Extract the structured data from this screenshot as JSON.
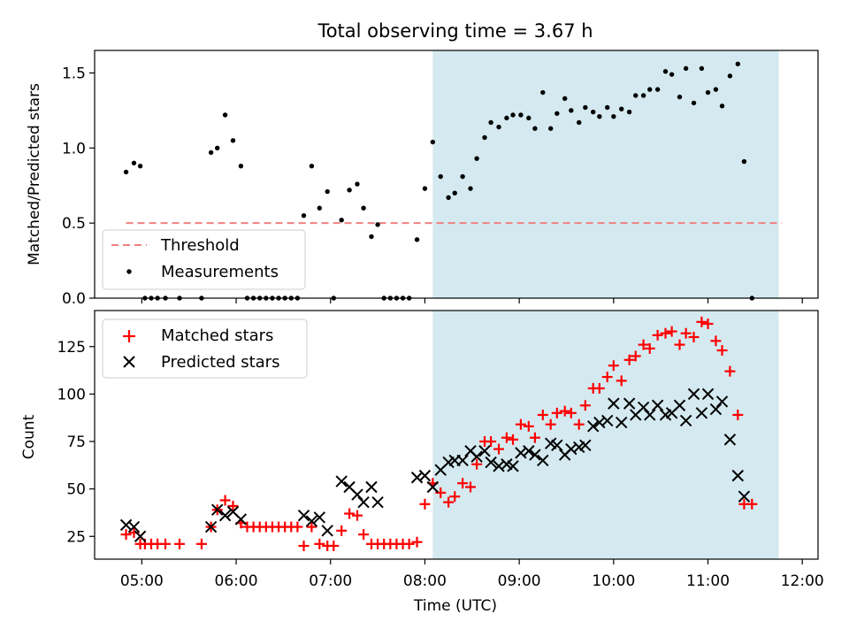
{
  "chart_data": [
    {
      "type": "scatter",
      "title": "Total observing time = 3.67 h",
      "ylabel": "Matched/Predicted stars",
      "xlabel": "",
      "xlim": [
        "04:30",
        "12:10"
      ],
      "ylim": [
        0,
        1.65
      ],
      "yticks": [
        0.0,
        0.5,
        1.0,
        1.5
      ],
      "ytick_labels": [
        "0.0",
        "0.5",
        "1.0",
        "1.5"
      ],
      "grid": false,
      "legend_position": "lower-left",
      "observing_window": {
        "start": "08:05",
        "end": "11:45",
        "color": "#d4eaf0"
      },
      "threshold": {
        "name": "Threshold",
        "value": 0.5,
        "from": "04:50",
        "to": "11:47",
        "color": "#f08080"
      },
      "series": [
        {
          "name": "Measurements",
          "color": "#000000",
          "marker": "dot",
          "points": [
            [
              "04:50",
              0.84
            ],
            [
              "04:55",
              0.9
            ],
            [
              "04:59",
              0.88
            ],
            [
              "05:02",
              0.0
            ],
            [
              "05:06",
              0.0
            ],
            [
              "05:10",
              0.0
            ],
            [
              "05:15",
              0.0
            ],
            [
              "05:24",
              0.0
            ],
            [
              "05:38",
              0.0
            ],
            [
              "05:44",
              0.97
            ],
            [
              "05:48",
              1.0
            ],
            [
              "05:53",
              1.22
            ],
            [
              "05:58",
              1.05
            ],
            [
              "06:03",
              0.88
            ],
            [
              "06:07",
              0.0
            ],
            [
              "06:11",
              0.0
            ],
            [
              "06:15",
              0.0
            ],
            [
              "06:19",
              0.0
            ],
            [
              "06:23",
              0.0
            ],
            [
              "06:27",
              0.0
            ],
            [
              "06:31",
              0.0
            ],
            [
              "06:35",
              0.0
            ],
            [
              "06:39",
              0.0
            ],
            [
              "06:43",
              0.55
            ],
            [
              "06:48",
              0.88
            ],
            [
              "06:53",
              0.6
            ],
            [
              "06:58",
              0.71
            ],
            [
              "07:02",
              0.0
            ],
            [
              "07:07",
              0.52
            ],
            [
              "07:12",
              0.72
            ],
            [
              "07:17",
              0.76
            ],
            [
              "07:21",
              0.6
            ],
            [
              "07:26",
              0.41
            ],
            [
              "07:30",
              0.49
            ],
            [
              "07:34",
              0.0
            ],
            [
              "07:38",
              0.0
            ],
            [
              "07:42",
              0.0
            ],
            [
              "07:46",
              0.0
            ],
            [
              "07:50",
              0.0
            ],
            [
              "07:55",
              0.39
            ],
            [
              "08:00",
              0.73
            ],
            [
              "08:05",
              1.04
            ],
            [
              "08:10",
              0.81
            ],
            [
              "08:15",
              0.67
            ],
            [
              "08:19",
              0.7
            ],
            [
              "08:24",
              0.81
            ],
            [
              "08:29",
              0.73
            ],
            [
              "08:33",
              0.93
            ],
            [
              "08:38",
              1.07
            ],
            [
              "08:42",
              1.17
            ],
            [
              "08:47",
              1.14
            ],
            [
              "08:52",
              1.2
            ],
            [
              "08:56",
              1.22
            ],
            [
              "09:01",
              1.22
            ],
            [
              "09:06",
              1.2
            ],
            [
              "09:10",
              1.13
            ],
            [
              "09:15",
              1.37
            ],
            [
              "09:20",
              1.13
            ],
            [
              "09:24",
              1.23
            ],
            [
              "09:29",
              1.33
            ],
            [
              "09:33",
              1.25
            ],
            [
              "09:38",
              1.17
            ],
            [
              "09:42",
              1.27
            ],
            [
              "09:47",
              1.24
            ],
            [
              "09:51",
              1.21
            ],
            [
              "09:56",
              1.27
            ],
            [
              "10:00",
              1.21
            ],
            [
              "10:05",
              1.26
            ],
            [
              "10:10",
              1.24
            ],
            [
              "10:14",
              1.35
            ],
            [
              "10:19",
              1.35
            ],
            [
              "10:23",
              1.39
            ],
            [
              "10:28",
              1.39
            ],
            [
              "10:33",
              1.51
            ],
            [
              "10:37",
              1.49
            ],
            [
              "10:42",
              1.34
            ],
            [
              "10:46",
              1.53
            ],
            [
              "10:51",
              1.3
            ],
            [
              "10:56",
              1.53
            ],
            [
              "11:00",
              1.37
            ],
            [
              "11:05",
              1.39
            ],
            [
              "11:09",
              1.28
            ],
            [
              "11:14",
              1.48
            ],
            [
              "11:19",
              1.56
            ],
            [
              "11:23",
              0.91
            ],
            [
              "11:28",
              0.0
            ]
          ]
        }
      ],
      "legend": {
        "threshold_label": "Threshold",
        "measurements_label": "Measurements"
      }
    },
    {
      "type": "scatter",
      "title": "",
      "xlabel": "Time (UTC)",
      "ylabel": "Count",
      "xlim": [
        "04:30",
        "12:10"
      ],
      "ylim": [
        13,
        144
      ],
      "xticks": [
        "05:00",
        "06:00",
        "07:00",
        "08:00",
        "09:00",
        "10:00",
        "11:00",
        "12:00"
      ],
      "yticks": [
        25,
        50,
        75,
        100,
        125
      ],
      "ytick_labels": [
        "25",
        "50",
        "75",
        "100",
        "125"
      ],
      "grid": false,
      "legend_position": "upper-left",
      "observing_window": {
        "start": "08:05",
        "end": "11:45",
        "color": "#d4eaf0"
      },
      "series": [
        {
          "name": "Matched stars",
          "color": "#ff0000",
          "marker": "plus",
          "points": [
            [
              "04:50",
              26
            ],
            [
              "04:55",
              27
            ],
            [
              "04:59",
              21
            ],
            [
              "05:02",
              21
            ],
            [
              "05:06",
              21
            ],
            [
              "05:10",
              21
            ],
            [
              "05:15",
              21
            ],
            [
              "05:24",
              21
            ],
            [
              "05:38",
              21
            ],
            [
              "05:44",
              30
            ],
            [
              "05:48",
              39
            ],
            [
              "05:53",
              44
            ],
            [
              "05:58",
              41
            ],
            [
              "06:03",
              32
            ],
            [
              "06:07",
              30
            ],
            [
              "06:11",
              30
            ],
            [
              "06:15",
              30
            ],
            [
              "06:19",
              30
            ],
            [
              "06:23",
              30
            ],
            [
              "06:27",
              30
            ],
            [
              "06:31",
              30
            ],
            [
              "06:35",
              30
            ],
            [
              "06:39",
              30
            ],
            [
              "06:43",
              20
            ],
            [
              "06:48",
              30
            ],
            [
              "06:53",
              21
            ],
            [
              "06:58",
              20
            ],
            [
              "07:02",
              20
            ],
            [
              "07:07",
              28
            ],
            [
              "07:12",
              37
            ],
            [
              "07:17",
              36
            ],
            [
              "07:21",
              26
            ],
            [
              "07:26",
              21
            ],
            [
              "07:30",
              21
            ],
            [
              "07:34",
              21
            ],
            [
              "07:38",
              21
            ],
            [
              "07:42",
              21
            ],
            [
              "07:46",
              21
            ],
            [
              "07:50",
              21
            ],
            [
              "07:55",
              22
            ],
            [
              "08:00",
              42
            ],
            [
              "08:05",
              53
            ],
            [
              "08:10",
              48
            ],
            [
              "08:15",
              43
            ],
            [
              "08:19",
              46
            ],
            [
              "08:24",
              53
            ],
            [
              "08:29",
              51
            ],
            [
              "08:33",
              63
            ],
            [
              "08:38",
              75
            ],
            [
              "08:42",
              75
            ],
            [
              "08:47",
              71
            ],
            [
              "08:52",
              77
            ],
            [
              "08:56",
              76
            ],
            [
              "09:01",
              84
            ],
            [
              "09:06",
              83
            ],
            [
              "09:10",
              77
            ],
            [
              "09:15",
              89
            ],
            [
              "09:20",
              84
            ],
            [
              "09:24",
              90
            ],
            [
              "09:29",
              91
            ],
            [
              "09:33",
              90
            ],
            [
              "09:38",
              84
            ],
            [
              "09:42",
              94
            ],
            [
              "09:47",
              103
            ],
            [
              "09:51",
              103
            ],
            [
              "09:56",
              109
            ],
            [
              "10:00",
              115
            ],
            [
              "10:05",
              107
            ],
            [
              "10:10",
              118
            ],
            [
              "10:14",
              120
            ],
            [
              "10:19",
              126
            ],
            [
              "10:23",
              124
            ],
            [
              "10:28",
              131
            ],
            [
              "10:33",
              132
            ],
            [
              "10:37",
              133
            ],
            [
              "10:42",
              126
            ],
            [
              "10:46",
              132
            ],
            [
              "10:51",
              130
            ],
            [
              "10:56",
              138
            ],
            [
              "11:00",
              137
            ],
            [
              "11:05",
              128
            ],
            [
              "11:09",
              123
            ],
            [
              "11:14",
              112
            ],
            [
              "11:19",
              89
            ],
            [
              "11:23",
              42
            ],
            [
              "11:28",
              42
            ]
          ]
        },
        {
          "name": "Predicted stars",
          "color": "#000000",
          "marker": "x",
          "points": [
            [
              "04:50",
              31
            ],
            [
              "04:55",
              30
            ],
            [
              "04:59",
              25
            ],
            [
              "05:44",
              30
            ],
            [
              "05:48",
              39
            ],
            [
              "05:53",
              36
            ],
            [
              "05:58",
              38
            ],
            [
              "06:03",
              34
            ],
            [
              "06:43",
              36
            ],
            [
              "06:48",
              33
            ],
            [
              "06:53",
              35
            ],
            [
              "06:58",
              28
            ],
            [
              "07:07",
              54
            ],
            [
              "07:12",
              51
            ],
            [
              "07:17",
              47
            ],
            [
              "07:21",
              43
            ],
            [
              "07:26",
              51
            ],
            [
              "07:30",
              43
            ],
            [
              "07:55",
              56
            ],
            [
              "08:00",
              57
            ],
            [
              "08:05",
              51
            ],
            [
              "08:10",
              60
            ],
            [
              "08:15",
              64
            ],
            [
              "08:19",
              65
            ],
            [
              "08:24",
              65
            ],
            [
              "08:29",
              70
            ],
            [
              "08:33",
              67
            ],
            [
              "08:38",
              70
            ],
            [
              "08:42",
              64
            ],
            [
              "08:47",
              62
            ],
            [
              "08:52",
              63
            ],
            [
              "08:56",
              62
            ],
            [
              "09:01",
              69
            ],
            [
              "09:06",
              70
            ],
            [
              "09:10",
              68
            ],
            [
              "09:15",
              65
            ],
            [
              "09:20",
              74
            ],
            [
              "09:24",
              73
            ],
            [
              "09:29",
              68
            ],
            [
              "09:33",
              71
            ],
            [
              "09:38",
              72
            ],
            [
              "09:42",
              73
            ],
            [
              "09:47",
              83
            ],
            [
              "09:51",
              85
            ],
            [
              "09:56",
              86
            ],
            [
              "10:00",
              95
            ],
            [
              "10:05",
              85
            ],
            [
              "10:10",
              95
            ],
            [
              "10:14",
              89
            ],
            [
              "10:19",
              93
            ],
            [
              "10:23",
              89
            ],
            [
              "10:28",
              94
            ],
            [
              "10:33",
              89
            ],
            [
              "10:37",
              90
            ],
            [
              "10:42",
              94
            ],
            [
              "10:46",
              86
            ],
            [
              "10:51",
              100
            ],
            [
              "10:56",
              90
            ],
            [
              "11:00",
              100
            ],
            [
              "11:05",
              92
            ],
            [
              "11:09",
              96
            ],
            [
              "11:14",
              76
            ],
            [
              "11:19",
              57
            ],
            [
              "11:23",
              46
            ]
          ]
        }
      ],
      "legend": {
        "matched_label": "Matched stars",
        "predicted_label": "Predicted stars"
      }
    }
  ]
}
